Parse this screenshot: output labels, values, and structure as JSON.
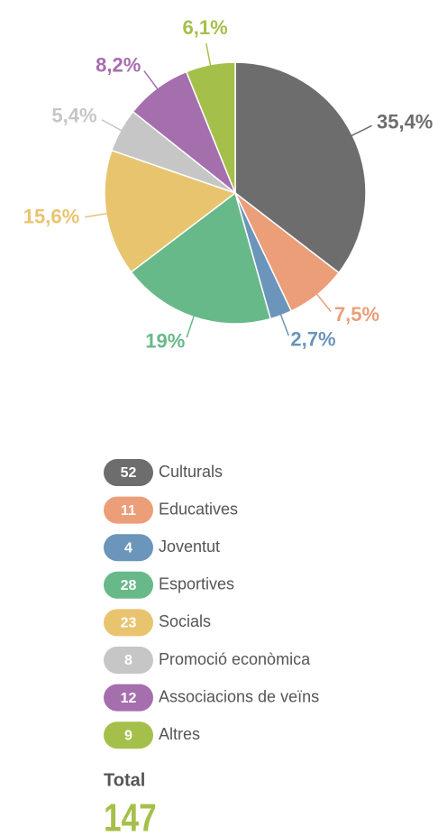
{
  "chart_data": {
    "type": "pie",
    "categories": [
      "Culturals",
      "Educatives",
      "Joventut",
      "Esportives",
      "Socials",
      "Promoció econòmica",
      "Associacions de veïns",
      "Altres"
    ],
    "values": [
      35.4,
      7.5,
      2.7,
      19,
      15.6,
      5.4,
      8.2,
      6.1
    ],
    "value_labels": [
      "35,4%",
      "7,5%",
      "2,7%",
      "19%",
      "15,6%",
      "5,4%",
      "8,2%",
      "6,1%"
    ],
    "counts": [
      52,
      11,
      4,
      28,
      23,
      8,
      12,
      9
    ],
    "colors": [
      "#6d6d6d",
      "#ec9e78",
      "#6b95ba",
      "#68b98a",
      "#e9c46f",
      "#c6c6c6",
      "#a56ead",
      "#a5c04a"
    ],
    "total_label": "Total",
    "total": 147
  }
}
